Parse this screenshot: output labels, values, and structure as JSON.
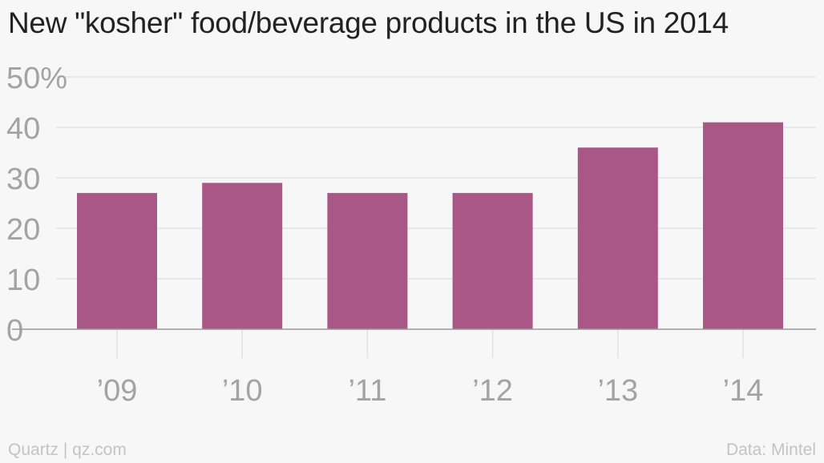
{
  "chart_data": {
    "type": "bar",
    "title": "New \"kosher\" food/beverage products in the US in 2014",
    "xlabel": "",
    "ylabel": "",
    "categories": [
      "’09",
      "’10",
      "’11",
      "’12",
      "’13",
      "’14"
    ],
    "values": [
      27,
      29,
      27,
      27,
      36,
      41
    ],
    "ylim": [
      0,
      50
    ],
    "yticks": [
      0,
      10,
      20,
      30,
      40,
      50
    ],
    "ytick_labels": [
      "0",
      "10",
      "20",
      "30",
      "40",
      "50%"
    ],
    "grid": true,
    "legend": "none",
    "bar_color": "#a85787"
  },
  "footer": {
    "source_left": "Quartz | qz.com",
    "source_right": "Data: Mintel"
  }
}
